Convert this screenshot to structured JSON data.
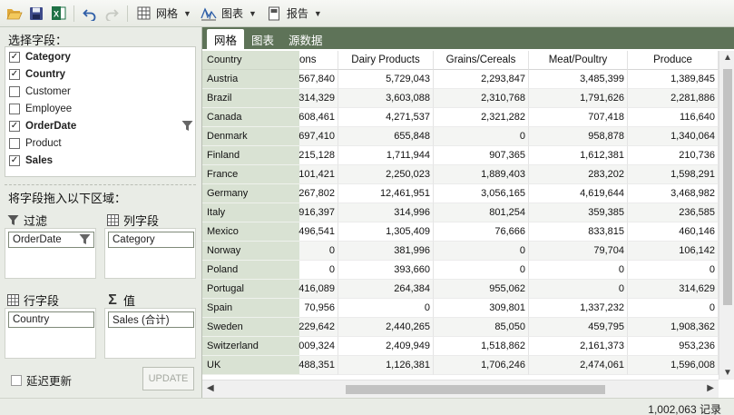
{
  "toolbar": {
    "grid_label": "网格",
    "chart_label": "图表",
    "report_label": "报告",
    "icons": [
      "open-folder-icon",
      "save-icon",
      "excel-icon",
      "undo-icon",
      "redo-icon",
      "grid-icon",
      "chart-icon",
      "report-icon"
    ]
  },
  "fields": {
    "title": "选择字段：",
    "items": [
      {
        "label": "Category",
        "checked": true
      },
      {
        "label": "Country",
        "checked": true
      },
      {
        "label": "Customer",
        "checked": false
      },
      {
        "label": "Employee",
        "checked": false
      },
      {
        "label": "OrderDate",
        "checked": true
      },
      {
        "label": "Product",
        "checked": false
      },
      {
        "label": "Sales",
        "checked": true
      }
    ]
  },
  "drag_title": "将字段拖入以下区域：",
  "zones": {
    "filter": {
      "label": "过滤",
      "field": "OrderDate"
    },
    "columns": {
      "label": "列字段",
      "field": "Category"
    },
    "rows": {
      "label": "行字段",
      "field": "Country"
    },
    "values": {
      "label": "值",
      "field": "Sales (合计)"
    }
  },
  "defer_label": "延迟更新",
  "update_label": "UPDATE",
  "tabs": [
    "网格",
    "图表",
    "源数据"
  ],
  "grid": {
    "corner_label": "Country",
    "columns": [
      "ons",
      "Dairy Products",
      "Grains/Cereals",
      "Meat/Poultry",
      "Produce"
    ],
    "rows": [
      {
        "country": "Austria",
        "values": [
          "567,840",
          "5,729,043",
          "2,293,847",
          "3,485,399",
          "1,389,845"
        ]
      },
      {
        "country": "Brazil",
        "values": [
          "314,329",
          "3,603,088",
          "2,310,768",
          "1,791,626",
          "2,281,886"
        ]
      },
      {
        "country": "Canada",
        "values": [
          "608,461",
          "4,271,537",
          "2,321,282",
          "707,418",
          "116,640"
        ]
      },
      {
        "country": "Denmark",
        "values": [
          "697,410",
          "655,848",
          "0",
          "958,878",
          "1,340,064"
        ]
      },
      {
        "country": "Finland",
        "values": [
          "215,128",
          "1,711,944",
          "907,365",
          "1,612,381",
          "210,736"
        ]
      },
      {
        "country": "France",
        "values": [
          "101,421",
          "2,250,023",
          "1,889,403",
          "283,202",
          "1,598,291"
        ]
      },
      {
        "country": "Germany",
        "values": [
          "267,802",
          "12,461,951",
          "3,056,165",
          "4,619,644",
          "3,468,982"
        ]
      },
      {
        "country": "Italy",
        "values": [
          "916,397",
          "314,996",
          "801,254",
          "359,385",
          "236,585"
        ]
      },
      {
        "country": "Mexico",
        "values": [
          "496,541",
          "1,305,409",
          "76,666",
          "833,815",
          "460,146"
        ]
      },
      {
        "country": "Norway",
        "values": [
          "0",
          "381,996",
          "0",
          "79,704",
          "106,142"
        ]
      },
      {
        "country": "Poland",
        "values": [
          "0",
          "393,660",
          "0",
          "0",
          "0"
        ]
      },
      {
        "country": "Portugal",
        "values": [
          "416,089",
          "264,384",
          "955,062",
          "0",
          "314,629"
        ]
      },
      {
        "country": "Spain",
        "values": [
          "70,956",
          "0",
          "309,801",
          "1,337,232",
          "0"
        ]
      },
      {
        "country": "Sweden",
        "values": [
          "229,642",
          "2,440,265",
          "85,050",
          "459,795",
          "1,908,362"
        ]
      },
      {
        "country": "Switzerland",
        "values": [
          "009,324",
          "2,409,949",
          "1,518,862",
          "2,161,373",
          "953,236"
        ]
      },
      {
        "country": "UK",
        "values": [
          "488,351",
          "1,126,381",
          "1,706,246",
          "2,474,061",
          "1,596,008"
        ]
      }
    ]
  },
  "status": {
    "record_count": "1,002,063 记录"
  },
  "colors": {
    "tab_bar": "#5e7358",
    "row_header": "#d9e2d3",
    "accent_green": "#1e7145"
  }
}
